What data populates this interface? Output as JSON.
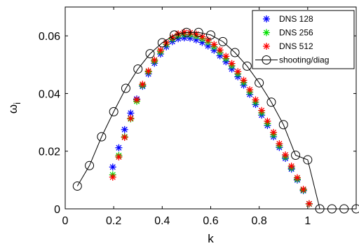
{
  "chart_data": {
    "type": "scatter",
    "title": "",
    "xlabel": "k",
    "ylabel": "ω",
    "ylabel_sub": "i",
    "xlim": [
      0,
      1.2
    ],
    "ylim": [
      0,
      0.07
    ],
    "xticks": [
      0,
      0.2,
      0.4,
      0.6,
      0.8,
      1
    ],
    "xtick_labels": [
      "0",
      "0.2",
      "0.4",
      "0.6",
      "0.8",
      "1"
    ],
    "yticks": [
      0,
      0.02,
      0.04,
      0.06
    ],
    "ytick_labels": [
      "0",
      "0.02",
      "0.04",
      "0.06"
    ],
    "grid": false,
    "legend_position": "top-right",
    "series": [
      {
        "name": "DNS 128",
        "marker": "asterisk",
        "color": "#0000ff",
        "x": [
          0.196,
          0.221,
          0.245,
          0.27,
          0.295,
          0.319,
          0.343,
          0.368,
          0.393,
          0.417,
          0.442,
          0.466,
          0.491,
          0.515,
          0.54,
          0.565,
          0.589,
          0.614,
          0.638,
          0.663,
          0.687,
          0.712,
          0.736,
          0.761,
          0.785,
          0.81,
          0.834,
          0.859,
          0.883,
          0.908,
          0.933,
          0.957,
          0.982,
          1.006
        ],
        "y": [
          0.0145,
          0.0212,
          0.0275,
          0.0332,
          0.0381,
          0.0425,
          0.0468,
          0.0505,
          0.0537,
          0.0562,
          0.058,
          0.059,
          0.0593,
          0.0592,
          0.0586,
          0.0577,
          0.0565,
          0.055,
          0.0531,
          0.051,
          0.0485,
          0.0458,
          0.0429,
          0.0397,
          0.0362,
          0.0325,
          0.0289,
          0.025,
          0.0213,
          0.0175,
          0.0138,
          0.01,
          0.0063,
          0.0017
        ]
      },
      {
        "name": "DNS 256",
        "marker": "asterisk",
        "color": "#00e000",
        "x": [
          0.196,
          0.221,
          0.245,
          0.27,
          0.295,
          0.319,
          0.343,
          0.368,
          0.393,
          0.417,
          0.442,
          0.466,
          0.491,
          0.515,
          0.54,
          0.565,
          0.589,
          0.614,
          0.638,
          0.663,
          0.687,
          0.712,
          0.736,
          0.761,
          0.785,
          0.81,
          0.834,
          0.859,
          0.883,
          0.908,
          0.933,
          0.957,
          0.982,
          1.006
        ],
        "y": [
          0.0118,
          0.0185,
          0.025,
          0.0312,
          0.0373,
          0.0428,
          0.0475,
          0.0512,
          0.0545,
          0.057,
          0.0589,
          0.0601,
          0.0605,
          0.0604,
          0.0599,
          0.059,
          0.0578,
          0.0562,
          0.0543,
          0.0521,
          0.0496,
          0.0468,
          0.0438,
          0.0405,
          0.037,
          0.0333,
          0.0296,
          0.0257,
          0.0219,
          0.018,
          0.0142,
          0.0103,
          0.0065,
          0.0017
        ]
      },
      {
        "name": "DNS 512",
        "marker": "asterisk",
        "color": "#ff0000",
        "x": [
          0.196,
          0.221,
          0.245,
          0.27,
          0.295,
          0.319,
          0.343,
          0.368,
          0.393,
          0.417,
          0.442,
          0.466,
          0.491,
          0.515,
          0.54,
          0.565,
          0.589,
          0.614,
          0.638,
          0.663,
          0.687,
          0.712,
          0.736,
          0.761,
          0.785,
          0.81,
          0.834,
          0.859,
          0.883,
          0.908,
          0.933,
          0.957,
          0.982,
          1.006
        ],
        "y": [
          0.011,
          0.018,
          0.0248,
          0.0314,
          0.0378,
          0.0432,
          0.0478,
          0.0516,
          0.055,
          0.0576,
          0.0594,
          0.0607,
          0.0612,
          0.0611,
          0.0606,
          0.0597,
          0.0585,
          0.057,
          0.0551,
          0.0529,
          0.0504,
          0.0476,
          0.0446,
          0.0413,
          0.0378,
          0.0341,
          0.0304,
          0.0265,
          0.0226,
          0.0187,
          0.0148,
          0.0108,
          0.0068,
          0.0018
        ]
      },
      {
        "name": "shooting/diag",
        "marker": "circle-line",
        "color": "#000000",
        "x": [
          0.05,
          0.1,
          0.15,
          0.2,
          0.25,
          0.3,
          0.35,
          0.4,
          0.45,
          0.5,
          0.55,
          0.6,
          0.65,
          0.7,
          0.75,
          0.8,
          0.85,
          0.9,
          0.95,
          1.0,
          1.05,
          1.1,
          1.15,
          1.2
        ],
        "y": [
          0.0079,
          0.015,
          0.025,
          0.0337,
          0.0418,
          0.0485,
          0.0538,
          0.0576,
          0.0603,
          0.0612,
          0.0612,
          0.0603,
          0.058,
          0.0542,
          0.0495,
          0.0437,
          0.037,
          0.0292,
          0.0186,
          0.017,
          0.0,
          0.0,
          0.0,
          0.0
        ]
      }
    ]
  }
}
